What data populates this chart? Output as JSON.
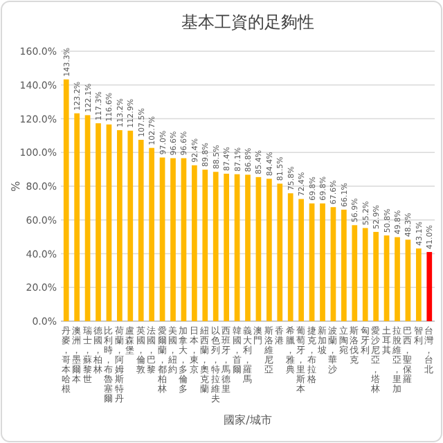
{
  "chart_data": {
    "type": "bar",
    "title": "基本工資的足夠性",
    "xlabel": "國家/城市",
    "ylabel": "%",
    "categories": [
      "丹麥，哥本哈根",
      "澳洲，墨爾本",
      "瑞士，蘇黎世",
      "德國，柏林",
      "比利時，布魯塞爾",
      "荷蘭，阿姆斯特丹",
      "盧森堡",
      "英國，倫敦",
      "法國，巴黎",
      "愛爾蘭，都柏林",
      "美國，紐約",
      "加拿大，多倫多",
      "日本，東京",
      "紐西蘭，奧克蘭",
      "以色列，特拉維夫",
      "西班牙，馬德里",
      "韓國，首爾",
      "義大利，羅馬",
      "澳門",
      "斯洛維尼亞",
      "香港",
      "希臘，雅典",
      "葡萄牙，里斯本",
      "捷克，布拉格",
      "新加坡",
      "波蘭，華沙",
      "立陶宛",
      "斯洛伐克",
      "匈牙利",
      "愛沙尼亞，塔林",
      "土耳其",
      "拉脫維亞，里加",
      "巴西，聖保羅",
      "智利",
      "台灣，台北"
    ],
    "values": [
      143.3,
      123.2,
      122.1,
      117.3,
      116.6,
      113.2,
      112.9,
      107.5,
      102.7,
      97.0,
      96.6,
      96.6,
      92.4,
      89.8,
      88.5,
      87.4,
      87.1,
      86.8,
      85.4,
      84.4,
      81.5,
      75.8,
      72.4,
      69.8,
      69.8,
      67.6,
      66.1,
      56.9,
      55.2,
      52.9,
      50.8,
      49.8,
      48.3,
      43.1,
      41.0
    ],
    "colors": [
      "#ffb900",
      "#ffb900",
      "#ffb900",
      "#ffb900",
      "#ffb900",
      "#ffb900",
      "#ffb900",
      "#ffb900",
      "#ffb900",
      "#ffb900",
      "#ffb900",
      "#ffb900",
      "#ffb900",
      "#ffb900",
      "#ffb900",
      "#ffb900",
      "#ffb900",
      "#ffb900",
      "#ffb900",
      "#ffb900",
      "#ffb900",
      "#ffb900",
      "#ffb900",
      "#ffb900",
      "#ffb900",
      "#ffb900",
      "#ffb900",
      "#ffb900",
      "#ffb900",
      "#ffb900",
      "#ffb900",
      "#ffb900",
      "#ffb900",
      "#ffb900",
      "#ff0000"
    ],
    "ylim": [
      0,
      160
    ],
    "yticks": [
      {
        "value": 0,
        "label": "0.0%"
      },
      {
        "value": 20,
        "label": "20.0%"
      },
      {
        "value": 40,
        "label": "40.0%"
      },
      {
        "value": 60,
        "label": "60.0%"
      },
      {
        "value": 80,
        "label": "80.0%"
      },
      {
        "value": 100,
        "label": "100.0%"
      },
      {
        "value": 120,
        "label": "120.0%"
      },
      {
        "value": 140,
        "label": "140.0%"
      },
      {
        "value": 160,
        "label": "160.0%"
      }
    ],
    "grid": "y",
    "value_labels": [
      "143.3%",
      "123.2%",
      "122.1%",
      "117.3%",
      "116.6%",
      "113.2%",
      "112.9%",
      "107.5%",
      "102.7%",
      "97.0%",
      "96.6%",
      "96.6%",
      "92.4%",
      "89.8%",
      "88.5%",
      "87.4%",
      "87.1%",
      "86.8%",
      "85.4%",
      "84.4%",
      "81.5%",
      "75.8%",
      "72.4%",
      "69.8%",
      "69.8%",
      "67.6%",
      "66.1%",
      "56.9%",
      "55.2%",
      "52.9%",
      "50.8%",
      "49.8%",
      "48.3%",
      "43.1%",
      "41.0%"
    ]
  }
}
